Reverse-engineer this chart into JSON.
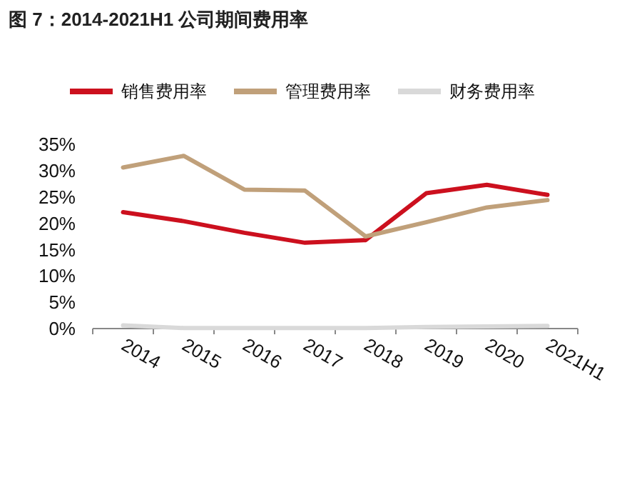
{
  "chart_data": {
    "type": "line",
    "title": "图 7：2014-2021H1 公司期间费用率",
    "categories": [
      "2014",
      "2015",
      "2016",
      "2017",
      "2018",
      "2019",
      "2020",
      "2021H1"
    ],
    "series": [
      {
        "name": "销售费用率",
        "color": "#cc101e",
        "values": [
          22.1,
          20.4,
          18.2,
          16.3,
          16.8,
          25.7,
          27.3,
          25.4
        ]
      },
      {
        "name": "管理费用率",
        "color": "#c0a07a",
        "values": [
          30.6,
          32.8,
          26.4,
          26.2,
          17.5,
          20.2,
          23.0,
          24.4
        ]
      },
      {
        "name": "财务费用率",
        "color": "#d9d9d9",
        "values": [
          0.6,
          0.1,
          0.1,
          0.1,
          0.1,
          0.3,
          0.4,
          0.5
        ]
      }
    ],
    "ylim": [
      0,
      35
    ],
    "yticks": [
      {
        "value": 0,
        "label": "0%"
      },
      {
        "value": 5,
        "label": "5%"
      },
      {
        "value": 10,
        "label": "10%"
      },
      {
        "value": 15,
        "label": "15%"
      },
      {
        "value": 20,
        "label": "20%"
      },
      {
        "value": 25,
        "label": "25%"
      },
      {
        "value": 30,
        "label": "30%"
      },
      {
        "value": 35,
        "label": "35%"
      }
    ],
    "legend": "top",
    "grid": false,
    "marker": "none",
    "line_style": "solid"
  }
}
